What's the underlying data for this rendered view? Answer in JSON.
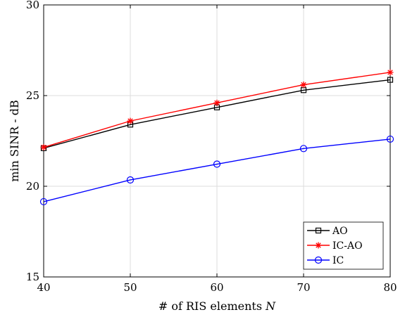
{
  "chart_data": {
    "type": "line",
    "xlabel_text": "# of RIS elements ",
    "xlabel_var": "N",
    "ylabel": "min SINR - dB",
    "xlim": [
      40,
      80
    ],
    "ylim": [
      15,
      30
    ],
    "xticks": [
      40,
      50,
      60,
      70,
      80
    ],
    "yticks": [
      15,
      20,
      25,
      30
    ],
    "grid": true,
    "legend_position": "bottom-right",
    "x": [
      40,
      50,
      60,
      70,
      80
    ],
    "series": [
      {
        "name": "AO",
        "color": "#000000",
        "marker": "square",
        "values": [
          22.1,
          23.4,
          24.35,
          25.3,
          25.87
        ]
      },
      {
        "name": "IC-AO",
        "color": "#ff0000",
        "marker": "asterisk",
        "values": [
          22.15,
          23.6,
          24.6,
          25.6,
          26.28
        ]
      },
      {
        "name": "IC",
        "color": "#0000ff",
        "marker": "circle",
        "values": [
          19.15,
          20.35,
          21.22,
          22.08,
          22.6
        ]
      }
    ]
  }
}
